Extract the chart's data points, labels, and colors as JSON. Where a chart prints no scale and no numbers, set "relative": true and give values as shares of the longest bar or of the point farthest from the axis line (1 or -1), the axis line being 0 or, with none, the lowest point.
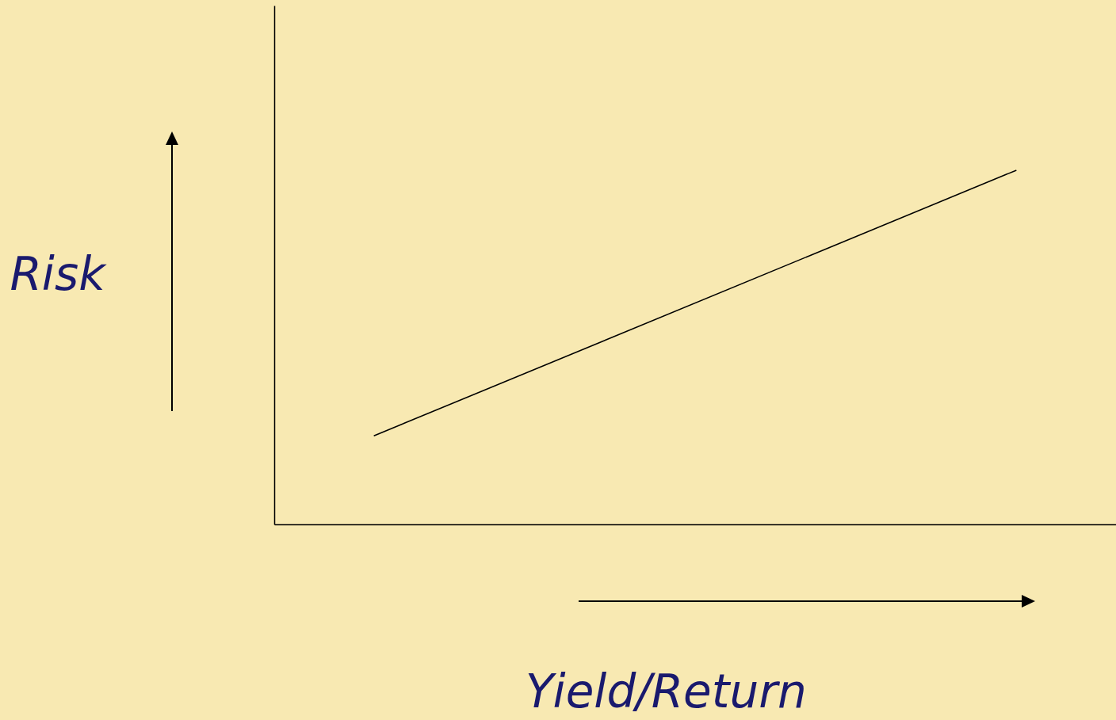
{
  "chart_data": {
    "type": "line",
    "xlabel": "Yield/Return",
    "ylabel": "Risk",
    "categories": [
      null,
      null
    ],
    "relative": true,
    "series": [
      {
        "color": "#000000",
        "values": [
          0.25,
          1
        ]
      }
    ]
  }
}
